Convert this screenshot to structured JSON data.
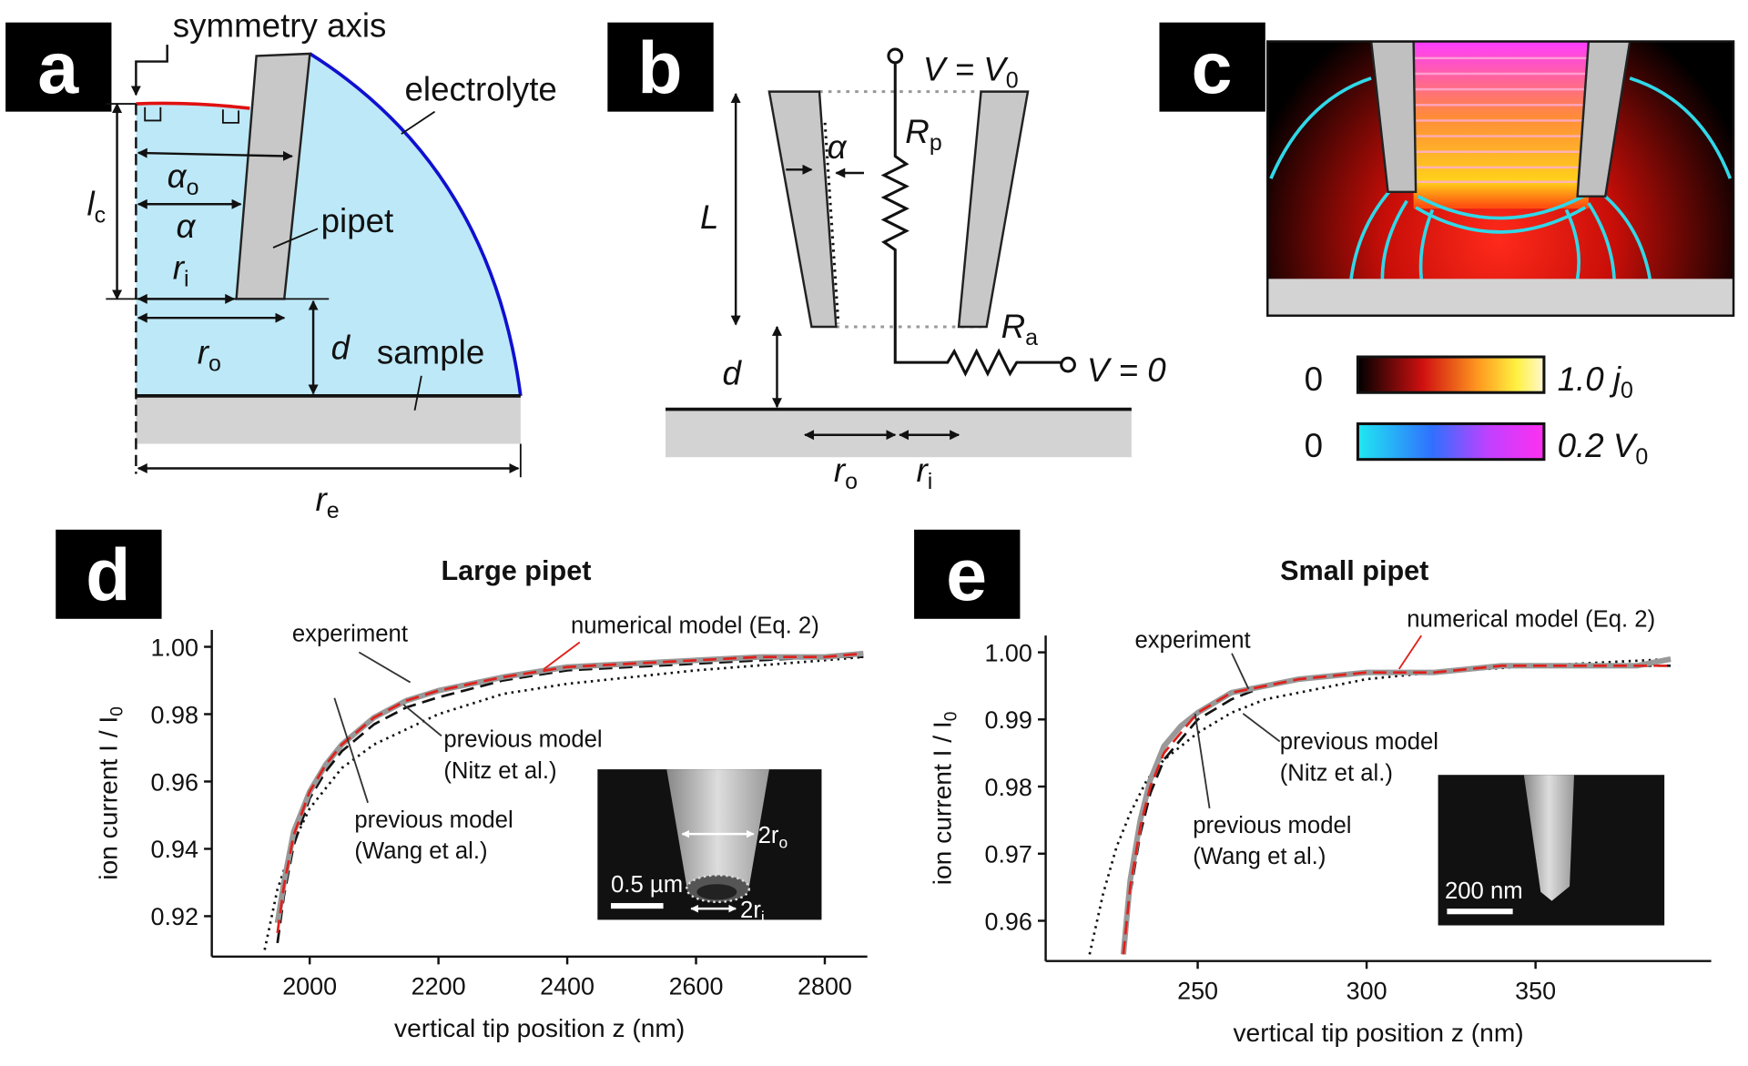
{
  "panels": {
    "a": {
      "label": "a",
      "symmetry_axis": "symmetry axis",
      "electrolyte": "electrolyte",
      "pipet": "pipet",
      "sample": "sample",
      "lc": {
        "text": "l",
        "sub": "c"
      },
      "alpha_o": {
        "text": "α",
        "sub": "o"
      },
      "alpha": "α",
      "ri": {
        "text": "r",
        "sub": "i"
      },
      "ro": {
        "text": "r",
        "sub": "o"
      },
      "d": "d",
      "re": {
        "text": "r",
        "sub": "e"
      }
    },
    "b": {
      "label": "b",
      "L": "L",
      "alpha": "α",
      "d": "d",
      "ro": {
        "text": "r",
        "sub": "o"
      },
      "ri": {
        "text": "r",
        "sub": "i"
      },
      "Rp": {
        "text": "R",
        "sub": "p"
      },
      "Ra": {
        "text": "R",
        "sub": "a"
      },
      "V0": {
        "text": "V = V",
        "sub": "0"
      },
      "Vzero": "V = 0"
    },
    "c": {
      "label": "c",
      "bar1_min": "0",
      "bar1_max": {
        "text": "1.0 j",
        "sub": "0"
      },
      "bar2_min": "0",
      "bar2_max": {
        "text": "0.2 V",
        "sub": "0"
      }
    }
  },
  "chart_data": [
    {
      "type": "line",
      "panel_label": "d",
      "title": "Large pipet",
      "xlabel": "vertical tip position z (nm)",
      "ylabel": {
        "text": "ion current I / I",
        "sub": "0"
      },
      "xlim": [
        1848,
        2866
      ],
      "xticks": [
        2000,
        2200,
        2400,
        2600,
        2800
      ],
      "ylim": [
        0.908,
        1.005
      ],
      "yticks": [
        0.92,
        0.94,
        0.96,
        0.98,
        {
          "value": 1,
          "label": "1.00"
        }
      ],
      "series": [
        {
          "color": "#999999",
          "style": "solid",
          "x": [
            1950,
            1960,
            1975,
            2000,
            2025,
            2050,
            2100,
            2150,
            2200,
            2300,
            2400,
            2500,
            2600,
            2700,
            2800,
            2860
          ],
          "values": [
            0.918,
            0.93,
            0.945,
            0.957,
            0.965,
            0.971,
            0.979,
            0.984,
            0.987,
            0.991,
            0.994,
            0.995,
            0.996,
            0.997,
            0.997,
            0.998
          ]
        },
        {
          "color": "#e0201b",
          "style": "dashed",
          "x": [
            1950,
            1960,
            1975,
            2000,
            2025,
            2050,
            2100,
            2150,
            2200,
            2300,
            2400,
            2500,
            2600,
            2700,
            2800,
            2860
          ],
          "values": [
            0.915,
            0.929,
            0.944,
            0.957,
            0.965,
            0.971,
            0.979,
            0.984,
            0.987,
            0.991,
            0.994,
            0.995,
            0.996,
            0.997,
            0.997,
            0.998
          ]
        },
        {
          "color": "#111111",
          "style": "dotted",
          "x": [
            1930,
            1950,
            1975,
            2000,
            2050,
            2100,
            2200,
            2300,
            2400,
            2500,
            2600,
            2800,
            2860
          ],
          "values": [
            0.91,
            0.928,
            0.942,
            0.952,
            0.964,
            0.971,
            0.98,
            0.986,
            0.989,
            0.991,
            0.993,
            0.996,
            0.997
          ]
        },
        {
          "color": "#111111",
          "style": "dashed",
          "x": [
            1950,
            1960,
            1975,
            2000,
            2025,
            2050,
            2100,
            2150,
            2200,
            2300,
            2400,
            2500,
            2600,
            2700,
            2800,
            2860
          ],
          "values": [
            0.912,
            0.926,
            0.941,
            0.955,
            0.963,
            0.969,
            0.977,
            0.982,
            0.985,
            0.99,
            0.993,
            0.994,
            0.995,
            0.996,
            0.997,
            0.997
          ]
        }
      ],
      "annotations": [
        [
          "experiment"
        ],
        [
          "numerical model (Eq. 2)"
        ],
        [
          "previous model",
          "(Nitz et al.)"
        ],
        [
          "previous model",
          "(Wang et al.)"
        ]
      ],
      "inset": {
        "scale_bar": "0.5 µm",
        "labels": [
          {
            "text": "2r",
            "sub": "o"
          },
          {
            "text": "2r",
            "sub": "i"
          }
        ]
      }
    },
    {
      "type": "line",
      "panel_label": "e",
      "title": "Small pipet",
      "xlabel": "vertical tip position z (nm)",
      "ylabel": {
        "text": "ion current I / I",
        "sub": "0"
      },
      "xlim": [
        205,
        402
      ],
      "xticks": [
        250,
        300,
        350
      ],
      "ylim": [
        0.954,
        1.0025
      ],
      "yticks": [
        0.96,
        0.97,
        0.98,
        0.99,
        {
          "value": 1,
          "label": "1.00"
        }
      ],
      "series": [
        {
          "color": "#999999",
          "style": "solid",
          "x": [
            228,
            230,
            233,
            236,
            240,
            245,
            250,
            260,
            270,
            280,
            300,
            320,
            340,
            360,
            380,
            390
          ],
          "values": [
            0.955,
            0.966,
            0.975,
            0.981,
            0.986,
            0.989,
            0.991,
            0.994,
            0.995,
            0.996,
            0.997,
            0.997,
            0.998,
            0.998,
            0.998,
            0.999
          ]
        },
        {
          "color": "#e0201b",
          "style": "dashed",
          "x": [
            228,
            230,
            233,
            236,
            240,
            245,
            250,
            260,
            270,
            280,
            300,
            320,
            340,
            360,
            380,
            390
          ],
          "values": [
            0.955,
            0.965,
            0.974,
            0.98,
            0.985,
            0.988,
            0.991,
            0.994,
            0.995,
            0.996,
            0.997,
            0.997,
            0.998,
            0.998,
            0.998,
            0.998
          ]
        },
        {
          "color": "#111111",
          "style": "dotted",
          "x": [
            218,
            222,
            226,
            230,
            235,
            240,
            250,
            260,
            270,
            280,
            300,
            320,
            350,
            390
          ],
          "values": [
            0.955,
            0.964,
            0.971,
            0.976,
            0.981,
            0.984,
            0.988,
            0.991,
            0.993,
            0.994,
            0.996,
            0.997,
            0.998,
            0.999
          ]
        },
        {
          "color": "#111111",
          "style": "dashed",
          "x": [
            228,
            230,
            233,
            236,
            240,
            245,
            250,
            260,
            270,
            280,
            300,
            320,
            340,
            360,
            380,
            390
          ],
          "values": [
            0.955,
            0.964,
            0.973,
            0.979,
            0.984,
            0.987,
            0.99,
            0.993,
            0.995,
            0.996,
            0.997,
            0.997,
            0.998,
            0.998,
            0.998,
            0.998
          ]
        }
      ],
      "annotations": [
        [
          "experiment"
        ],
        [
          "numerical model (Eq. 2)"
        ],
        [
          "previous model",
          "(Nitz et al.)"
        ],
        [
          "previous model",
          "(Wang et al.)"
        ]
      ],
      "inset": {
        "scale_bar": "200 nm",
        "labels": []
      }
    }
  ]
}
